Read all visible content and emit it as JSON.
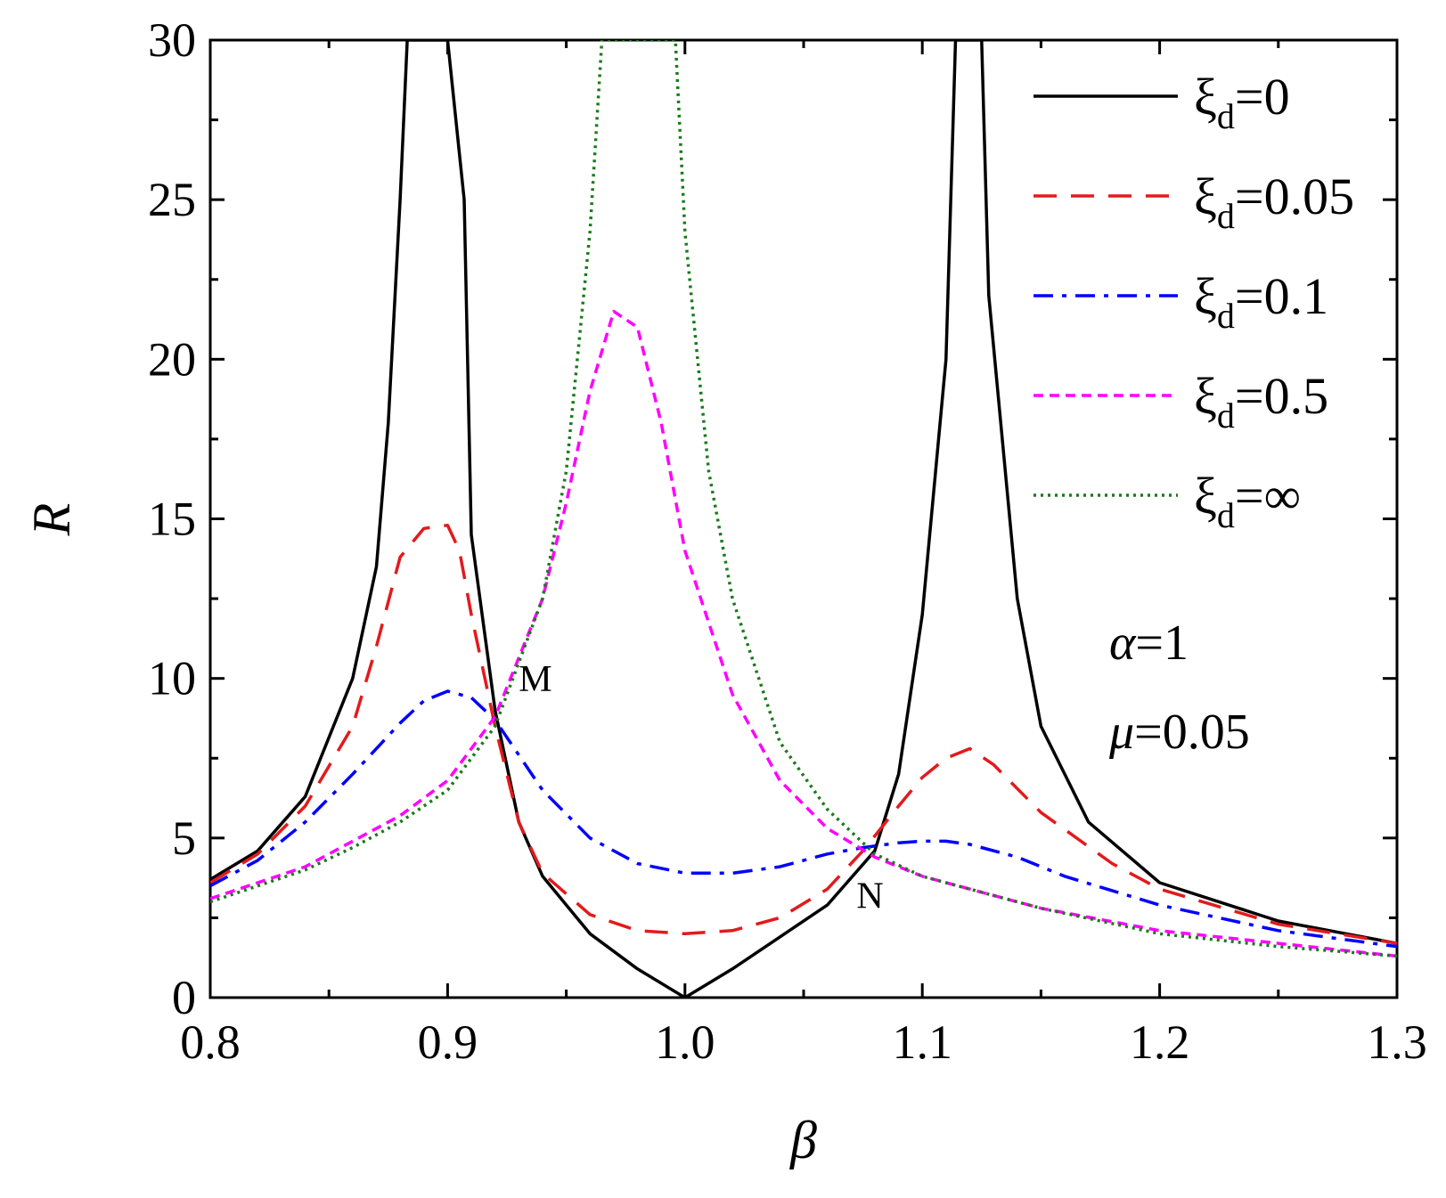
{
  "chart_data": {
    "type": "line",
    "title": "",
    "xlabel": "β",
    "ylabel": "R",
    "xlim": [
      0.8,
      1.3
    ],
    "ylim": [
      0,
      30
    ],
    "x_ticks": [
      0.8,
      0.9,
      1.0,
      1.1,
      1.2,
      1.3
    ],
    "x_tick_labels": [
      "0.8",
      "0.9",
      "1.0",
      "1.1",
      "1.2",
      "1.3"
    ],
    "y_ticks": [
      0,
      5,
      10,
      15,
      20,
      25,
      30
    ],
    "y_tick_labels": [
      "0",
      "5",
      "10",
      "15",
      "20",
      "25",
      "30"
    ],
    "grid": false,
    "legend_position": "top-right",
    "legend_symbol": "ξ",
    "legend_subscript": "d",
    "series": [
      {
        "name": "ξd=0",
        "label_value": "=0",
        "color": "#000000",
        "style": "solid",
        "x": [
          0.8,
          0.82,
          0.84,
          0.86,
          0.87,
          0.875,
          0.88,
          0.883,
          0.9,
          0.907,
          0.91,
          0.92,
          0.93,
          0.94,
          0.96,
          0.98,
          1.0,
          1.02,
          1.04,
          1.06,
          1.08,
          1.09,
          1.1,
          1.11,
          1.114,
          1.125,
          1.128,
          1.14,
          1.15,
          1.17,
          1.2,
          1.25,
          1.3
        ],
        "values": [
          3.7,
          4.6,
          6.3,
          10.0,
          13.5,
          18.0,
          25.0,
          30.0,
          30.0,
          25.0,
          14.5,
          9.0,
          5.5,
          3.8,
          2.0,
          0.9,
          0.0,
          0.9,
          1.9,
          2.9,
          4.6,
          7.0,
          12.0,
          20.0,
          30.0,
          30.0,
          22.0,
          12.5,
          8.5,
          5.5,
          3.6,
          2.4,
          1.7
        ]
      },
      {
        "name": "ξd=0.05",
        "label_value": "=0.05",
        "color": "#e31a1c",
        "style": "dashed",
        "x": [
          0.8,
          0.82,
          0.84,
          0.86,
          0.87,
          0.88,
          0.89,
          0.9,
          0.905,
          0.91,
          0.92,
          0.93,
          0.94,
          0.96,
          0.98,
          1.0,
          1.02,
          1.04,
          1.06,
          1.075,
          1.09,
          1.1,
          1.11,
          1.12,
          1.13,
          1.15,
          1.18,
          1.2,
          1.25,
          1.3
        ],
        "values": [
          3.6,
          4.5,
          6.0,
          8.5,
          11.0,
          13.8,
          14.7,
          14.8,
          14.0,
          12.0,
          8.5,
          5.5,
          3.9,
          2.6,
          2.1,
          2.0,
          2.1,
          2.5,
          3.4,
          4.6,
          6.0,
          6.9,
          7.5,
          7.8,
          7.3,
          5.8,
          4.2,
          3.4,
          2.3,
          1.7
        ]
      },
      {
        "name": "ξd=0.1",
        "label_value": "=0.1",
        "color": "#0000ff",
        "style": "dash-dot",
        "x": [
          0.8,
          0.82,
          0.84,
          0.86,
          0.88,
          0.89,
          0.9,
          0.91,
          0.92,
          0.94,
          0.96,
          0.98,
          1.0,
          1.02,
          1.04,
          1.06,
          1.075,
          1.09,
          1.1,
          1.11,
          1.12,
          1.14,
          1.16,
          1.2,
          1.25,
          1.3
        ],
        "values": [
          3.5,
          4.3,
          5.5,
          7.0,
          8.6,
          9.3,
          9.6,
          9.4,
          8.7,
          6.5,
          5.0,
          4.2,
          3.9,
          3.9,
          4.1,
          4.5,
          4.7,
          4.85,
          4.9,
          4.9,
          4.8,
          4.4,
          3.8,
          2.9,
          2.1,
          1.6
        ]
      },
      {
        "name": "ξd=0.5",
        "label_value": "=0.5",
        "color": "#ff00ff",
        "style": "short-dash",
        "x": [
          0.8,
          0.82,
          0.84,
          0.86,
          0.88,
          0.9,
          0.92,
          0.94,
          0.95,
          0.96,
          0.97,
          0.98,
          0.99,
          1.0,
          1.02,
          1.04,
          1.06,
          1.08,
          1.1,
          1.15,
          1.2,
          1.25,
          1.3
        ],
        "values": [
          3.1,
          3.6,
          4.1,
          4.9,
          5.7,
          6.8,
          8.8,
          12.5,
          15.5,
          19.0,
          21.5,
          21.0,
          18.0,
          14.0,
          9.5,
          6.8,
          5.3,
          4.4,
          3.8,
          2.8,
          2.1,
          1.7,
          1.3
        ]
      },
      {
        "name": "ξd=∞",
        "label_value": "=∞",
        "color": "#1a7a1a",
        "style": "dotted",
        "x": [
          0.8,
          0.82,
          0.84,
          0.86,
          0.88,
          0.9,
          0.92,
          0.94,
          0.95,
          0.96,
          0.965,
          0.97,
          0.98,
          0.99,
          0.993,
          0.996,
          1.0,
          1.01,
          1.02,
          1.04,
          1.06,
          1.08,
          1.1,
          1.15,
          1.2,
          1.25,
          1.3
        ],
        "values": [
          3.0,
          3.5,
          4.0,
          4.7,
          5.5,
          6.5,
          8.5,
          12.5,
          16.5,
          24.0,
          30.0,
          30.0,
          30.0,
          30.0,
          30.0,
          30.0,
          24.0,
          16.5,
          12.5,
          8.0,
          5.9,
          4.5,
          3.8,
          2.8,
          2.0,
          1.6,
          1.3
        ]
      }
    ],
    "annotations": [
      {
        "text": "M",
        "x": 0.937,
        "y": 9.6
      },
      {
        "text": "N",
        "x": 1.078,
        "y": 2.8
      }
    ],
    "parameters": [
      {
        "symbol": "α",
        "value": "=1"
      },
      {
        "symbol": "μ",
        "value": "=0.05"
      }
    ]
  }
}
